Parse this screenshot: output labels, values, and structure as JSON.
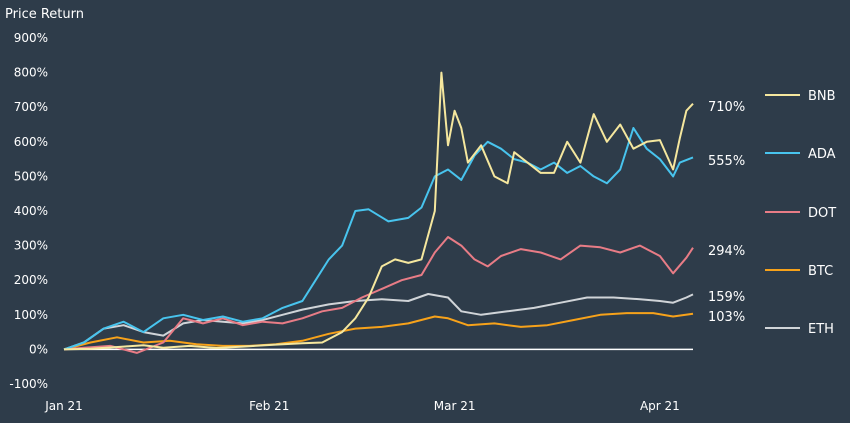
{
  "chart_data": {
    "type": "line",
    "title": "Price Return",
    "ylim": [
      -100,
      900
    ],
    "yticks": [
      -100,
      0,
      100,
      200,
      300,
      400,
      500,
      600,
      700,
      800,
      900
    ],
    "ytick_labels": [
      "-100%",
      "0%",
      "100%",
      "200%",
      "300%",
      "400%",
      "500%",
      "600%",
      "700%",
      "800%",
      "900%"
    ],
    "xlim": [
      "2021-01-01",
      "2021-04-06"
    ],
    "xticks": [
      {
        "date": "2021-01-01",
        "label": "Jan 21"
      },
      {
        "date": "2021-02-01",
        "label": "Feb 21"
      },
      {
        "date": "2021-03-01",
        "label": "Mar 21"
      },
      {
        "date": "2021-04-01",
        "label": "Apr 21"
      }
    ],
    "legend_position": "right",
    "series": [
      {
        "name": "BNB",
        "color": "#f5e79e",
        "end_label": "710%",
        "points": [
          [
            "2021-01-01",
            0
          ],
          [
            "2021-01-05",
            2
          ],
          [
            "2021-01-10",
            8
          ],
          [
            "2021-01-13",
            12
          ],
          [
            "2021-01-16",
            5
          ],
          [
            "2021-01-20",
            10
          ],
          [
            "2021-01-24",
            4
          ],
          [
            "2021-01-28",
            8
          ],
          [
            "2021-02-02",
            14
          ],
          [
            "2021-02-06",
            18
          ],
          [
            "2021-02-09",
            20
          ],
          [
            "2021-02-12",
            50
          ],
          [
            "2021-02-14",
            90
          ],
          [
            "2021-02-16",
            150
          ],
          [
            "2021-02-18",
            240
          ],
          [
            "2021-02-20",
            260
          ],
          [
            "2021-02-22",
            250
          ],
          [
            "2021-02-24",
            260
          ],
          [
            "2021-02-26",
            400
          ],
          [
            "2021-02-27",
            800
          ],
          [
            "2021-02-28",
            590
          ],
          [
            "2021-03-01",
            690
          ],
          [
            "2021-03-02",
            640
          ],
          [
            "2021-03-03",
            540
          ],
          [
            "2021-03-05",
            590
          ],
          [
            "2021-03-07",
            500
          ],
          [
            "2021-03-09",
            480
          ],
          [
            "2021-03-10",
            570
          ],
          [
            "2021-03-12",
            540
          ],
          [
            "2021-03-14",
            510
          ],
          [
            "2021-03-16",
            510
          ],
          [
            "2021-03-18",
            600
          ],
          [
            "2021-03-20",
            540
          ],
          [
            "2021-03-22",
            680
          ],
          [
            "2021-03-24",
            600
          ],
          [
            "2021-03-26",
            650
          ],
          [
            "2021-03-28",
            580
          ],
          [
            "2021-03-30",
            600
          ],
          [
            "2021-04-01",
            605
          ],
          [
            "2021-04-03",
            520
          ],
          [
            "2021-04-04",
            610
          ],
          [
            "2021-04-05",
            690
          ],
          [
            "2021-04-06",
            710
          ]
        ]
      },
      {
        "name": "ADA",
        "color": "#48c4ee",
        "end_label": "555%",
        "points": [
          [
            "2021-01-01",
            0
          ],
          [
            "2021-01-04",
            20
          ],
          [
            "2021-01-07",
            60
          ],
          [
            "2021-01-10",
            80
          ],
          [
            "2021-01-13",
            50
          ],
          [
            "2021-01-16",
            90
          ],
          [
            "2021-01-19",
            100
          ],
          [
            "2021-01-22",
            85
          ],
          [
            "2021-01-25",
            95
          ],
          [
            "2021-01-28",
            80
          ],
          [
            "2021-01-31",
            90
          ],
          [
            "2021-02-03",
            120
          ],
          [
            "2021-02-06",
            140
          ],
          [
            "2021-02-08",
            200
          ],
          [
            "2021-02-10",
            260
          ],
          [
            "2021-02-12",
            300
          ],
          [
            "2021-02-14",
            400
          ],
          [
            "2021-02-16",
            405
          ],
          [
            "2021-02-19",
            370
          ],
          [
            "2021-02-22",
            380
          ],
          [
            "2021-02-24",
            410
          ],
          [
            "2021-02-26",
            500
          ],
          [
            "2021-02-28",
            520
          ],
          [
            "2021-03-02",
            490
          ],
          [
            "2021-03-04",
            560
          ],
          [
            "2021-03-06",
            600
          ],
          [
            "2021-03-08",
            580
          ],
          [
            "2021-03-10",
            550
          ],
          [
            "2021-03-12",
            540
          ],
          [
            "2021-03-14",
            520
          ],
          [
            "2021-03-16",
            540
          ],
          [
            "2021-03-18",
            510
          ],
          [
            "2021-03-20",
            530
          ],
          [
            "2021-03-22",
            500
          ],
          [
            "2021-03-24",
            480
          ],
          [
            "2021-03-26",
            520
          ],
          [
            "2021-03-28",
            640
          ],
          [
            "2021-03-30",
            580
          ],
          [
            "2021-04-01",
            550
          ],
          [
            "2021-04-03",
            500
          ],
          [
            "2021-04-04",
            540
          ],
          [
            "2021-04-06",
            555
          ]
        ]
      },
      {
        "name": "DOT",
        "color": "#e87c86",
        "end_label": "294%",
        "points": [
          [
            "2021-01-01",
            0
          ],
          [
            "2021-01-04",
            5
          ],
          [
            "2021-01-08",
            10
          ],
          [
            "2021-01-12",
            -10
          ],
          [
            "2021-01-16",
            20
          ],
          [
            "2021-01-19",
            90
          ],
          [
            "2021-01-22",
            75
          ],
          [
            "2021-01-25",
            90
          ],
          [
            "2021-01-28",
            70
          ],
          [
            "2021-01-31",
            80
          ],
          [
            "2021-02-03",
            75
          ],
          [
            "2021-02-06",
            90
          ],
          [
            "2021-02-09",
            110
          ],
          [
            "2021-02-12",
            120
          ],
          [
            "2021-02-15",
            150
          ],
          [
            "2021-02-18",
            175
          ],
          [
            "2021-02-21",
            200
          ],
          [
            "2021-02-24",
            215
          ],
          [
            "2021-02-26",
            280
          ],
          [
            "2021-02-28",
            325
          ],
          [
            "2021-03-02",
            300
          ],
          [
            "2021-03-04",
            260
          ],
          [
            "2021-03-06",
            240
          ],
          [
            "2021-03-08",
            270
          ],
          [
            "2021-03-11",
            290
          ],
          [
            "2021-03-14",
            280
          ],
          [
            "2021-03-17",
            260
          ],
          [
            "2021-03-20",
            300
          ],
          [
            "2021-03-23",
            295
          ],
          [
            "2021-03-26",
            280
          ],
          [
            "2021-03-29",
            300
          ],
          [
            "2021-04-01",
            270
          ],
          [
            "2021-04-03",
            220
          ],
          [
            "2021-04-05",
            265
          ],
          [
            "2021-04-06",
            294
          ]
        ]
      },
      {
        "name": "BTC",
        "color": "#f7a21a",
        "end_label": "103%",
        "points": [
          [
            "2021-01-01",
            0
          ],
          [
            "2021-01-05",
            20
          ],
          [
            "2021-01-09",
            35
          ],
          [
            "2021-01-13",
            20
          ],
          [
            "2021-01-17",
            25
          ],
          [
            "2021-01-21",
            15
          ],
          [
            "2021-01-25",
            10
          ],
          [
            "2021-01-29",
            10
          ],
          [
            "2021-02-02",
            15
          ],
          [
            "2021-02-06",
            25
          ],
          [
            "2021-02-10",
            45
          ],
          [
            "2021-02-14",
            60
          ],
          [
            "2021-02-18",
            65
          ],
          [
            "2021-02-22",
            75
          ],
          [
            "2021-02-26",
            95
          ],
          [
            "2021-02-28",
            90
          ],
          [
            "2021-03-03",
            70
          ],
          [
            "2021-03-07",
            75
          ],
          [
            "2021-03-11",
            65
          ],
          [
            "2021-03-15",
            70
          ],
          [
            "2021-03-19",
            85
          ],
          [
            "2021-03-23",
            100
          ],
          [
            "2021-03-27",
            105
          ],
          [
            "2021-03-31",
            105
          ],
          [
            "2021-04-03",
            95
          ],
          [
            "2021-04-06",
            103
          ]
        ]
      },
      {
        "name": "ETH",
        "color": "#d0d4d8",
        "end_label": "159%",
        "points": [
          [
            "2021-01-01",
            0
          ],
          [
            "2021-01-04",
            20
          ],
          [
            "2021-01-07",
            60
          ],
          [
            "2021-01-10",
            70
          ],
          [
            "2021-01-13",
            50
          ],
          [
            "2021-01-16",
            40
          ],
          [
            "2021-01-19",
            75
          ],
          [
            "2021-01-22",
            85
          ],
          [
            "2021-01-25",
            80
          ],
          [
            "2021-01-28",
            75
          ],
          [
            "2021-01-31",
            85
          ],
          [
            "2021-02-03",
            100
          ],
          [
            "2021-02-06",
            115
          ],
          [
            "2021-02-10",
            130
          ],
          [
            "2021-02-14",
            140
          ],
          [
            "2021-02-18",
            145
          ],
          [
            "2021-02-22",
            140
          ],
          [
            "2021-02-25",
            160
          ],
          [
            "2021-02-28",
            150
          ],
          [
            "2021-03-02",
            110
          ],
          [
            "2021-03-05",
            100
          ],
          [
            "2021-03-09",
            110
          ],
          [
            "2021-03-13",
            120
          ],
          [
            "2021-03-17",
            135
          ],
          [
            "2021-03-21",
            150
          ],
          [
            "2021-03-25",
            150
          ],
          [
            "2021-03-29",
            145
          ],
          [
            "2021-04-01",
            140
          ],
          [
            "2021-04-03",
            135
          ],
          [
            "2021-04-05",
            150
          ],
          [
            "2021-04-06",
            159
          ]
        ]
      }
    ]
  }
}
